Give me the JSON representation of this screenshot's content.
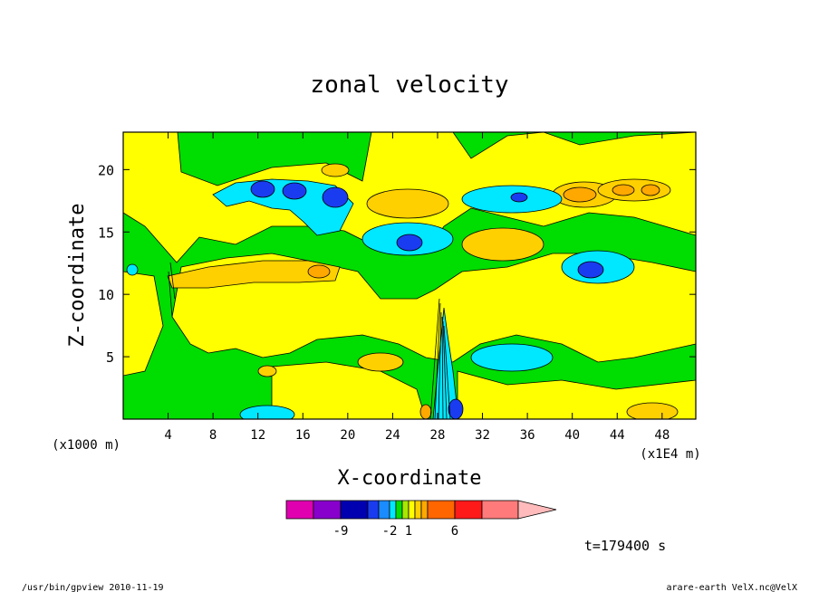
{
  "chart_data": {
    "type": "heatmap",
    "title": "zonal velocity",
    "xlabel": "X-coordinate",
    "ylabel": "Z-coordinate",
    "x_unit_label": "(x1E4 m)",
    "y_unit_label": "(x1000 m)",
    "xlim": [
      0,
      51
    ],
    "ylim": [
      0,
      23
    ],
    "x_ticks": [
      "4",
      "8",
      "12",
      "16",
      "20",
      "24",
      "28",
      "32",
      "36",
      "40",
      "44",
      "48"
    ],
    "y_ticks": [
      "5",
      "10",
      "15",
      "20"
    ],
    "colorbar": {
      "levels": [
        -12,
        -9,
        -6,
        -3,
        -2,
        -1,
        0,
        1,
        2,
        3,
        4,
        6,
        9,
        12
      ],
      "labels": [
        "-9",
        "-2",
        "1",
        "6"
      ],
      "colors": [
        "#e000b0",
        "#8800cc",
        "#0000b0",
        "#1a3cf0",
        "#1a8cff",
        "#00e8ff",
        "#00dd00",
        "#a8e800",
        "#ffff00",
        "#ffd000",
        "#ffa800",
        "#ff6600",
        "#ff1a1a",
        "#ff7b7b",
        "#ffbbbb"
      ]
    },
    "features": [
      {
        "x": 13.5,
        "z": 18.5,
        "value": -6
      },
      {
        "x": 15.5,
        "z": 18.3,
        "value": -6
      },
      {
        "x": 18.5,
        "z": 17.7,
        "value": -6
      },
      {
        "x": 25.5,
        "z": 14.2,
        "value": -3
      },
      {
        "x": 35.5,
        "z": 17.4,
        "value": -3
      },
      {
        "x": 41.5,
        "z": 12.0,
        "value": -3
      },
      {
        "x": 36.0,
        "z": 5.0,
        "value": -2
      },
      {
        "x": 11.5,
        "z": 1.2,
        "value": -2
      },
      {
        "x": 42.5,
        "z": 17.7,
        "value": 4
      },
      {
        "x": 45.5,
        "z": 18.3,
        "value": 3
      },
      {
        "x": 47.5,
        "z": 18.3,
        "value": 3
      },
      {
        "x": 26.0,
        "z": 17.0,
        "value": 2
      },
      {
        "x": 17.5,
        "z": 11.8,
        "value": 3
      },
      {
        "x": 4.5,
        "z": 11.0,
        "value": 2
      },
      {
        "x": 36.0,
        "z": 13.8,
        "value": 2
      },
      {
        "x": 23.0,
        "z": 4.8,
        "value": 2
      },
      {
        "x": 28.0,
        "z": 1.5,
        "value": 3
      },
      {
        "x": 29.0,
        "z": 0.5,
        "value": -6
      }
    ]
  },
  "time_label": "t=179400 s",
  "footer_left": "/usr/bin/gpview   2010-11-19",
  "footer_right": "arare-earth_VelX.nc@VelX"
}
